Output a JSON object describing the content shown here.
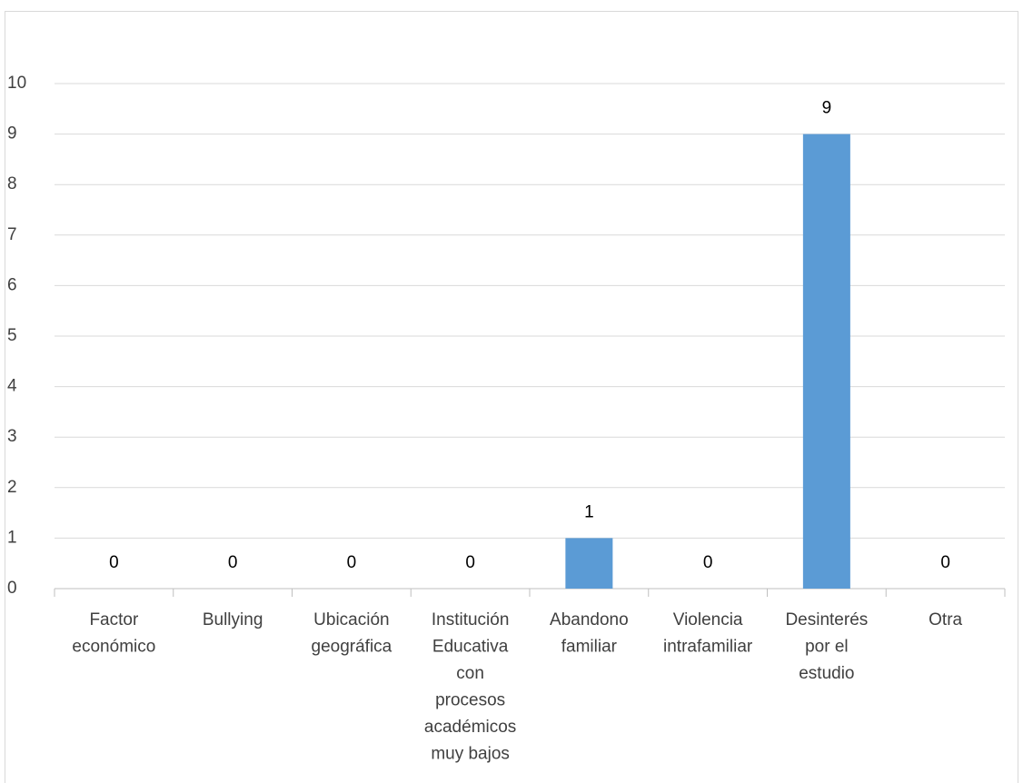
{
  "chart_data": {
    "type": "bar",
    "categories": [
      "Factor económico",
      "Bullying",
      "Ubicación geográfica",
      "Institución Educativa con procesos académicos muy bajos",
      "Abandono familiar",
      "Violencia intrafamiliar",
      "Desinterés por el estudio",
      "Otra"
    ],
    "values": [
      0,
      0,
      0,
      0,
      1,
      0,
      9,
      0
    ],
    "color": "#5b9bd5",
    "ylim": [
      0,
      10
    ],
    "yticks": [
      0,
      1,
      2,
      3,
      4,
      5,
      6,
      7,
      8,
      9,
      10
    ],
    "grid": true
  }
}
